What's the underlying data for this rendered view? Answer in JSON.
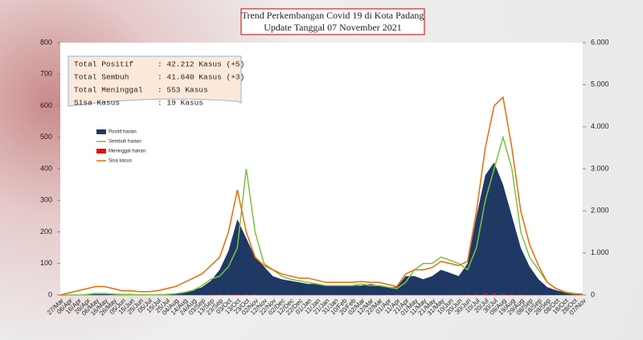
{
  "header": {
    "title": "Trend Perkembangan Covid 19 di Kota Padang",
    "subtitle": "Update Tanggal 07 November 2021"
  },
  "info": [
    {
      "label": "Total Positif",
      "value": ": 42.212 Kasus  (+5)"
    },
    {
      "label": "Total Sembuh",
      "value": ": 41.640 Kasus (+3)"
    },
    {
      "label": "Total Meninggal",
      "value": ":  553 Kasus"
    },
    {
      "label": "Sisa Kasus",
      "value": ":  19 Kasus"
    }
  ],
  "chart_data": {
    "type": "combo",
    "categories": [
      "27/Mar",
      "06/Apr",
      "16/Apr",
      "26/Apr",
      "06/May",
      "16/May",
      "26/May",
      "05/Jun",
      "15/Jun",
      "25/Jun",
      "05/Jul",
      "15/Jul",
      "25/Jul",
      "04/Aug",
      "14/Aug",
      "24/Aug",
      "03/Sep",
      "13/Sep",
      "23/Sep",
      "03/Oct",
      "13/Oct",
      "23/Oct",
      "02/Nov",
      "12/Nov",
      "22/Nov",
      "02/Dec",
      "12/Dec",
      "22/Dec",
      "01/Jan",
      "11/Jan",
      "21/Jan",
      "31/Jan",
      "10/Feb",
      "20/Feb",
      "02/Mar",
      "12/Mar",
      "22/Mar",
      "01/Apr",
      "11/Apr",
      "21/Apr",
      "01/May",
      "11/May",
      "21/May",
      "31/May",
      "10/Jun",
      "20/Jun",
      "30/Jun",
      "10/Jul",
      "20/Jul",
      "30/Jul",
      "09/Aug",
      "19/Aug",
      "29/Aug",
      "08/Sep",
      "18/Sep",
      "28/Sep",
      "08/Oct",
      "18/Oct",
      "28/Oct",
      "07/Nov"
    ],
    "series": [
      {
        "name": "Positif harian",
        "color": "#1f3864",
        "kind": "area",
        "values": [
          0,
          0,
          1,
          2,
          3,
          3,
          2,
          1,
          1,
          1,
          1,
          2,
          3,
          5,
          10,
          15,
          25,
          45,
          80,
          140,
          240,
          180,
          120,
          90,
          60,
          50,
          45,
          40,
          35,
          35,
          30,
          30,
          30,
          30,
          30,
          35,
          30,
          25,
          25,
          60,
          60,
          50,
          60,
          80,
          70,
          60,
          100,
          250,
          380,
          420,
          350,
          250,
          150,
          90,
          50,
          25,
          15,
          8,
          4,
          2
        ]
      },
      {
        "name": "Sembuh harian",
        "color": "#7ac143",
        "kind": "line",
        "values": [
          0,
          0,
          0,
          2,
          5,
          5,
          3,
          2,
          2,
          1,
          1,
          1,
          2,
          4,
          8,
          15,
          30,
          50,
          60,
          90,
          150,
          400,
          200,
          100,
          80,
          60,
          50,
          45,
          40,
          35,
          30,
          30,
          30,
          30,
          35,
          30,
          30,
          25,
          20,
          40,
          80,
          100,
          100,
          120,
          110,
          100,
          80,
          150,
          300,
          400,
          500,
          400,
          200,
          120,
          80,
          40,
          20,
          10,
          5,
          2
        ]
      },
      {
        "name": "Meninggal harian",
        "color": "#e01010",
        "kind": "bar",
        "values": [
          0,
          0,
          0,
          0,
          0,
          0,
          0,
          0,
          0,
          0,
          0,
          0,
          0,
          0,
          0,
          0,
          1,
          1,
          2,
          2,
          3,
          2,
          2,
          1,
          1,
          1,
          1,
          1,
          1,
          1,
          1,
          1,
          1,
          1,
          1,
          1,
          1,
          1,
          1,
          1,
          1,
          1,
          1,
          1,
          1,
          1,
          2,
          4,
          5,
          5,
          4,
          3,
          2,
          1,
          1,
          0,
          0,
          0,
          0,
          0
        ]
      },
      {
        "name": "Sisa kasus",
        "color": "#e46c0a",
        "kind": "line",
        "axis": "y2",
        "values": [
          0,
          50,
          100,
          150,
          200,
          200,
          150,
          100,
          100,
          80,
          80,
          100,
          150,
          200,
          300,
          400,
          500,
          700,
          900,
          1500,
          2500,
          1500,
          900,
          700,
          600,
          500,
          450,
          400,
          400,
          350,
          300,
          300,
          300,
          300,
          320,
          300,
          300,
          250,
          200,
          500,
          600,
          600,
          650,
          800,
          750,
          700,
          800,
          2000,
          3500,
          4500,
          4700,
          3500,
          2000,
          1200,
          700,
          300,
          150,
          60,
          25,
          19
        ]
      }
    ],
    "ylim": [
      0,
      800
    ],
    "yticks": [
      0,
      100,
      200,
      300,
      400,
      500,
      600,
      700,
      800
    ],
    "y2lim": [
      0,
      6000
    ],
    "y2ticks": [
      {
        "value": 0,
        "label": "0"
      },
      {
        "value": 1000,
        "label": "1.000"
      },
      {
        "value": 2000,
        "label": "2.000"
      },
      {
        "value": 3000,
        "label": "3.000"
      },
      {
        "value": 4000,
        "label": "4.000"
      },
      {
        "value": 5000,
        "label": "5.000"
      },
      {
        "value": 6000,
        "label": "6.000"
      }
    ],
    "grid": false
  }
}
